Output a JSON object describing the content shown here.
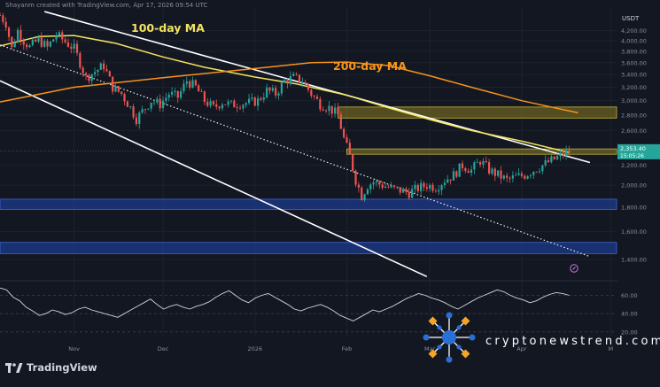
{
  "header": {
    "caption": "Shayanm created with TradingView.com, Apr 17, 2026 09:54 UTC",
    "pair": "USDT"
  },
  "branding": {
    "logo_text": "TradingView",
    "logo_icon": "tradingview-logo-icon"
  },
  "watermark": {
    "text": "cryptonewstrend.com",
    "icon": "network-nodes-logo-icon"
  },
  "colors": {
    "background": "#131722",
    "up": "#26a69a",
    "down": "#ef5350",
    "ma100": "#f2e35f",
    "ma200": "#f7931a",
    "channel": "#ffffff",
    "resistance_zone": "#8a7a1e",
    "support_zone": "#1e3b8c",
    "rsi": "#d1d4dc",
    "grid": "#1e222d"
  },
  "chart_data": {
    "type": "candlestick",
    "title": "",
    "xlabel": "",
    "ylabel": "",
    "grid": true,
    "y_scale": "log",
    "ylim": [
      1270,
      4700
    ],
    "y_ticks": [
      {
        "value": 4200,
        "label": "4,200.00"
      },
      {
        "value": 4000,
        "label": "4,000.00"
      },
      {
        "value": 3800,
        "label": "3,800.00"
      },
      {
        "value": 3600,
        "label": "3,600.00"
      },
      {
        "value": 3400,
        "label": "3,400.00"
      },
      {
        "value": 3200,
        "label": "3,200.00"
      },
      {
        "value": 3000,
        "label": "3,000.00"
      },
      {
        "value": 2800,
        "label": "2,800.00"
      },
      {
        "value": 2600,
        "label": "2,600.00"
      },
      {
        "value": 2200,
        "label": "2,200.00"
      },
      {
        "value": 2000,
        "label": "2,000.00"
      },
      {
        "value": 1800,
        "label": "1,800.00"
      },
      {
        "value": 1600,
        "label": "1,600.00"
      },
      {
        "value": 1400,
        "label": "1,400.00"
      }
    ],
    "price_tag": {
      "price": "2,353.40",
      "countdown": "15:05:26",
      "value": 2353
    },
    "x_ticks": [
      {
        "date": "2025-11-01",
        "label": "Nov"
      },
      {
        "date": "2025-12-01",
        "label": "Dec"
      },
      {
        "date": "2026-01-01",
        "label": "2026"
      },
      {
        "date": "2026-02-01",
        "label": "Feb"
      },
      {
        "date": "2026-03-01",
        "label": "Mar"
      },
      {
        "date": "2026-04-01",
        "label": "Apr"
      },
      {
        "date": "2026-05-01",
        "label": "M"
      }
    ],
    "xlim": [
      "2025-10-07",
      "2026-05-03"
    ],
    "close_series": [
      {
        "date": "2025-10-07",
        "value": 4520
      },
      {
        "date": "2025-10-09",
        "value": 4350
      },
      {
        "date": "2025-10-11",
        "value": 3850
      },
      {
        "date": "2025-10-13",
        "value": 4200
      },
      {
        "date": "2025-10-15",
        "value": 4000
      },
      {
        "date": "2025-10-17",
        "value": 3880
      },
      {
        "date": "2025-10-20",
        "value": 4020
      },
      {
        "date": "2025-10-23",
        "value": 3870
      },
      {
        "date": "2025-10-26",
        "value": 4120
      },
      {
        "date": "2025-10-29",
        "value": 3980
      },
      {
        "date": "2025-11-01",
        "value": 3850
      },
      {
        "date": "2025-11-03",
        "value": 3600
      },
      {
        "date": "2025-11-05",
        "value": 3350
      },
      {
        "date": "2025-11-08",
        "value": 3450
      },
      {
        "date": "2025-11-11",
        "value": 3550
      },
      {
        "date": "2025-11-14",
        "value": 3200
      },
      {
        "date": "2025-11-17",
        "value": 3100
      },
      {
        "date": "2025-11-20",
        "value": 2900
      },
      {
        "date": "2025-11-22",
        "value": 2750
      },
      {
        "date": "2025-11-24",
        "value": 2850
      },
      {
        "date": "2025-11-27",
        "value": 3000
      },
      {
        "date": "2025-11-30",
        "value": 2950
      },
      {
        "date": "2025-12-03",
        "value": 3100
      },
      {
        "date": "2025-12-06",
        "value": 3050
      },
      {
        "date": "2025-12-09",
        "value": 3300
      },
      {
        "date": "2025-12-12",
        "value": 3200
      },
      {
        "date": "2025-12-15",
        "value": 3000
      },
      {
        "date": "2025-12-18",
        "value": 2900
      },
      {
        "date": "2025-12-21",
        "value": 2980
      },
      {
        "date": "2025-12-24",
        "value": 2940
      },
      {
        "date": "2025-12-27",
        "value": 2960
      },
      {
        "date": "2025-12-30",
        "value": 2970
      },
      {
        "date": "2026-01-02",
        "value": 3000
      },
      {
        "date": "2026-01-05",
        "value": 3150
      },
      {
        "date": "2026-01-08",
        "value": 3100
      },
      {
        "date": "2026-01-11",
        "value": 3300
      },
      {
        "date": "2026-01-14",
        "value": 3350
      },
      {
        "date": "2026-01-17",
        "value": 3300
      },
      {
        "date": "2026-01-20",
        "value": 3100
      },
      {
        "date": "2026-01-23",
        "value": 2950
      },
      {
        "date": "2026-01-26",
        "value": 2900
      },
      {
        "date": "2026-01-29",
        "value": 2800
      },
      {
        "date": "2026-01-31",
        "value": 2500
      },
      {
        "date": "2026-02-02",
        "value": 2300
      },
      {
        "date": "2026-02-04",
        "value": 2050
      },
      {
        "date": "2026-02-06",
        "value": 1900
      },
      {
        "date": "2026-02-08",
        "value": 2000
      },
      {
        "date": "2026-02-10",
        "value": 2030
      },
      {
        "date": "2026-02-13",
        "value": 2000
      },
      {
        "date": "2026-02-16",
        "value": 1970
      },
      {
        "date": "2026-02-19",
        "value": 1950
      },
      {
        "date": "2026-02-22",
        "value": 1930
      },
      {
        "date": "2026-02-25",
        "value": 1970
      },
      {
        "date": "2026-02-28",
        "value": 2000
      },
      {
        "date": "2026-03-03",
        "value": 1980
      },
      {
        "date": "2026-03-06",
        "value": 2050
      },
      {
        "date": "2026-03-09",
        "value": 2100
      },
      {
        "date": "2026-03-12",
        "value": 2200
      },
      {
        "date": "2026-03-15",
        "value": 2150
      },
      {
        "date": "2026-03-18",
        "value": 2250
      },
      {
        "date": "2026-03-21",
        "value": 2150
      },
      {
        "date": "2026-03-24",
        "value": 2100
      },
      {
        "date": "2026-03-27",
        "value": 2050
      },
      {
        "date": "2026-03-30",
        "value": 2080
      },
      {
        "date": "2026-04-02",
        "value": 2100
      },
      {
        "date": "2026-04-05",
        "value": 2150
      },
      {
        "date": "2026-04-08",
        "value": 2200
      },
      {
        "date": "2026-04-11",
        "value": 2250
      },
      {
        "date": "2026-04-14",
        "value": 2300
      },
      {
        "date": "2026-04-17",
        "value": 2353
      }
    ],
    "series": [
      {
        "name": "100-day MA",
        "color": "#f2e35f",
        "points": [
          {
            "date": "2025-10-07",
            "value": 3900
          },
          {
            "date": "2025-10-20",
            "value": 4080
          },
          {
            "date": "2025-11-01",
            "value": 4100
          },
          {
            "date": "2025-11-15",
            "value": 3950
          },
          {
            "date": "2025-12-01",
            "value": 3700
          },
          {
            "date": "2025-12-15",
            "value": 3520
          },
          {
            "date": "2026-01-01",
            "value": 3360
          },
          {
            "date": "2026-01-15",
            "value": 3250
          },
          {
            "date": "2026-02-01",
            "value": 3080
          },
          {
            "date": "2026-02-15",
            "value": 2900
          },
          {
            "date": "2026-03-01",
            "value": 2740
          },
          {
            "date": "2026-03-15",
            "value": 2600
          },
          {
            "date": "2026-04-01",
            "value": 2470
          },
          {
            "date": "2026-04-17",
            "value": 2340
          }
        ]
      },
      {
        "name": "200-day MA",
        "color": "#f7931a",
        "points": [
          {
            "date": "2025-10-07",
            "value": 2980
          },
          {
            "date": "2025-11-01",
            "value": 3200
          },
          {
            "date": "2025-12-01",
            "value": 3350
          },
          {
            "date": "2026-01-01",
            "value": 3500
          },
          {
            "date": "2026-01-20",
            "value": 3600
          },
          {
            "date": "2026-02-01",
            "value": 3610
          },
          {
            "date": "2026-02-15",
            "value": 3550
          },
          {
            "date": "2026-03-01",
            "value": 3380
          },
          {
            "date": "2026-03-15",
            "value": 3200
          },
          {
            "date": "2026-04-01",
            "value": 3000
          },
          {
            "date": "2026-04-20",
            "value": 2830
          }
        ]
      }
    ],
    "channel_lines": [
      {
        "name": "upper",
        "style": "solid",
        "from": {
          "date": "2025-10-22",
          "value": 4600
        },
        "to": {
          "date": "2026-04-24",
          "value": 2230
        }
      },
      {
        "name": "middle",
        "style": "dotted",
        "from": {
          "date": "2025-10-07",
          "value": 3920
        },
        "to": {
          "date": "2026-04-24",
          "value": 1420
        }
      },
      {
        "name": "lower",
        "style": "solid",
        "from": {
          "date": "2025-10-07",
          "value": 3300
        },
        "to": {
          "date": "2026-02-28",
          "value": 1290
        }
      }
    ],
    "zones": [
      {
        "name": "resistance-upper",
        "type": "resistance",
        "from": "2026-01-29",
        "y": [
          2760,
          2910
        ]
      },
      {
        "name": "resistance-lower",
        "type": "resistance",
        "from": "2026-02-01",
        "y": [
          2320,
          2380
        ]
      },
      {
        "name": "support-upper",
        "type": "support",
        "from": "2025-10-07",
        "y": [
          1780,
          1870
        ]
      },
      {
        "name": "support-lower",
        "type": "support",
        "from": "2025-10-07",
        "y": [
          1440,
          1520
        ]
      }
    ],
    "annotations": [
      {
        "text": "100-day MA",
        "color": "#f2e35f"
      },
      {
        "text": "200-day MA",
        "color": "#f7931a"
      }
    ],
    "rsi": {
      "y_ticks": [
        {
          "value": 60,
          "label": "60.00"
        },
        {
          "value": 40,
          "label": "40.00"
        },
        {
          "value": 20,
          "label": "20.00"
        }
      ],
      "ylim": [
        15,
        75
      ],
      "values": [
        68,
        66,
        58,
        54,
        47,
        43,
        38,
        40,
        44,
        42,
        39,
        41,
        45,
        47,
        44,
        42,
        40,
        38,
        36,
        40,
        44,
        48,
        52,
        56,
        50,
        45,
        48,
        50,
        47,
        45,
        48,
        50,
        53,
        58,
        62,
        65,
        60,
        55,
        52,
        57,
        60,
        62,
        58,
        54,
        50,
        45,
        43,
        46,
        48,
        50,
        47,
        43,
        38,
        35,
        32,
        36,
        40,
        44,
        42,
        45,
        48,
        52,
        56,
        59,
        62,
        60,
        57,
        55,
        52,
        48,
        45,
        49,
        53,
        57,
        60,
        63,
        66,
        64,
        60,
        57,
        55,
        52,
        54,
        58,
        61,
        63,
        62,
        60
      ]
    }
  }
}
